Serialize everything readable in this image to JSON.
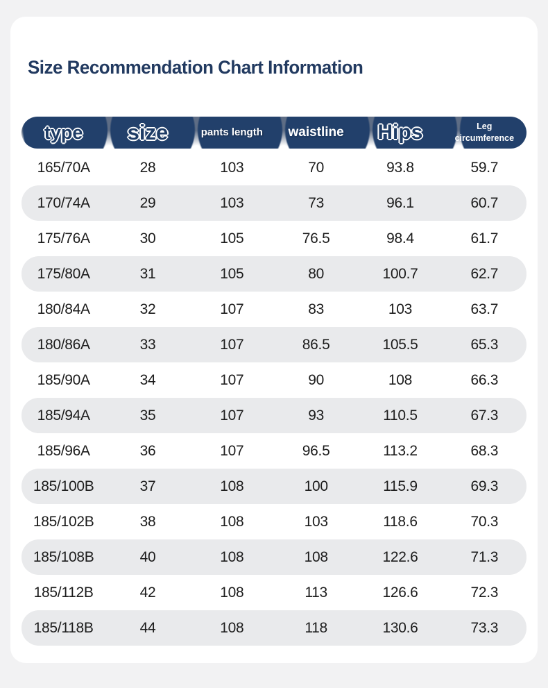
{
  "colors": {
    "page_background": "#f2f2f3",
    "card_background": "#ffffff",
    "title_text": "#223a60",
    "header_navy": "#22406b",
    "header_slate": "#5e6d85",
    "row_alt_background": "#e9eaec",
    "row_text": "#1c1c1c"
  },
  "chart_data": {
    "type": "table",
    "title": "Size Recommendation Chart Information",
    "columns": [
      {
        "label": "type"
      },
      {
        "label": "size"
      },
      {
        "label": "pants length"
      },
      {
        "label": "waistline"
      },
      {
        "label": "Hips"
      },
      {
        "label": "Leg circumference"
      }
    ],
    "rows": [
      [
        "165/70A",
        "28",
        "103",
        "70",
        "93.8",
        "59.7"
      ],
      [
        "170/74A",
        "29",
        "103",
        "73",
        "96.1",
        "60.7"
      ],
      [
        "175/76A",
        "30",
        "105",
        "76.5",
        "98.4",
        "61.7"
      ],
      [
        "175/80A",
        "31",
        "105",
        "80",
        "100.7",
        "62.7"
      ],
      [
        "180/84A",
        "32",
        "107",
        "83",
        "103",
        "63.7"
      ],
      [
        "180/86A",
        "33",
        "107",
        "86.5",
        "105.5",
        "65.3"
      ],
      [
        "185/90A",
        "34",
        "107",
        "90",
        "108",
        "66.3"
      ],
      [
        "185/94A",
        "35",
        "107",
        "93",
        "110.5",
        "67.3"
      ],
      [
        "185/96A",
        "36",
        "107",
        "96.5",
        "113.2",
        "68.3"
      ],
      [
        "185/100B",
        "37",
        "108",
        "100",
        "115.9",
        "69.3"
      ],
      [
        "185/102B",
        "38",
        "108",
        "103",
        "118.6",
        "70.3"
      ],
      [
        "185/108B",
        "40",
        "108",
        "108",
        "122.6",
        "71.3"
      ],
      [
        "185/112B",
        "42",
        "108",
        "113",
        "126.6",
        "72.3"
      ],
      [
        "185/118B",
        "44",
        "108",
        "118",
        "130.6",
        "73.3"
      ]
    ]
  }
}
